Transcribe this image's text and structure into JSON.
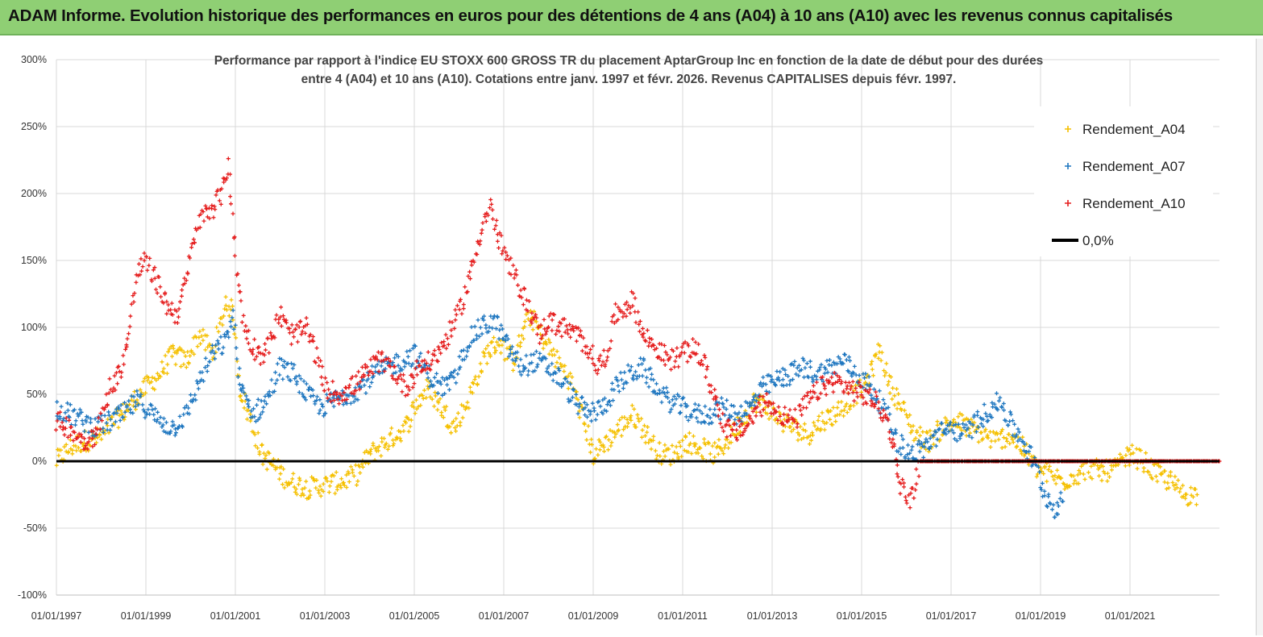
{
  "banner": {
    "title": "ADAM Informe. Evolution historique des performances en euros pour des détentions de 4 ans (A04) à 10 ans (A10) avec les revenus connus capitalisés"
  },
  "chart_data": {
    "type": "scatter",
    "title_lines": [
      "Performance par rapport à l'indice EU STOXX 600 GROSS TR  du placement AptarGroup Inc en fonction de la date de début pour des durées",
      "entre 4 (A04) et 10 ans (A10). Cotations entre janv. 1997 et févr. 2026. Revenus CAPITALISES depuis févr. 1997."
    ],
    "x_ticks": [
      "01/01/1997",
      "01/01/1999",
      "01/01/2001",
      "01/01/2003",
      "01/01/2005",
      "01/01/2007",
      "01/01/2009",
      "01/01/2011",
      "01/01/2013",
      "01/01/2015",
      "01/01/2017",
      "01/01/2019",
      "01/01/2021"
    ],
    "xlim": [
      1997.0,
      2023.0
    ],
    "y_ticks": [
      "300%",
      "250%",
      "200%",
      "150%",
      "100%",
      "50%",
      "0%",
      "-50%",
      "-100%"
    ],
    "ylim": [
      -100,
      300
    ],
    "legend_position": "top-right",
    "series": [
      {
        "name": "Rendement_A04",
        "color": "#f5c000",
        "marker": "+",
        "points": [
          [
            1997.0,
            0
          ],
          [
            1997.3,
            10
          ],
          [
            1997.6,
            15
          ],
          [
            1998.0,
            18
          ],
          [
            1998.3,
            30
          ],
          [
            1998.6,
            40
          ],
          [
            1999.0,
            55
          ],
          [
            1999.3,
            65
          ],
          [
            1999.6,
            80
          ],
          [
            1999.9,
            75
          ],
          [
            2000.2,
            95
          ],
          [
            2000.5,
            80
          ],
          [
            2000.8,
            120
          ],
          [
            2000.95,
            110
          ],
          [
            2001.1,
            55
          ],
          [
            2001.3,
            35
          ],
          [
            2001.6,
            5
          ],
          [
            2001.9,
            -5
          ],
          [
            2002.2,
            -15
          ],
          [
            2002.6,
            -20
          ],
          [
            2003.0,
            -18
          ],
          [
            2003.4,
            -15
          ],
          [
            2003.7,
            -10
          ],
          [
            2004.0,
            5
          ],
          [
            2004.4,
            15
          ],
          [
            2004.8,
            25
          ],
          [
            2005.0,
            40
          ],
          [
            2005.3,
            55
          ],
          [
            2005.6,
            40
          ],
          [
            2005.9,
            25
          ],
          [
            2006.2,
            45
          ],
          [
            2006.6,
            80
          ],
          [
            2006.9,
            90
          ],
          [
            2007.2,
            75
          ],
          [
            2007.6,
            110
          ],
          [
            2007.9,
            90
          ],
          [
            2008.2,
            75
          ],
          [
            2008.5,
            60
          ],
          [
            2008.8,
            30
          ],
          [
            2009.0,
            5
          ],
          [
            2009.3,
            15
          ],
          [
            2009.6,
            25
          ],
          [
            2009.9,
            35
          ],
          [
            2010.2,
            20
          ],
          [
            2010.5,
            5
          ],
          [
            2010.8,
            5
          ],
          [
            2011.1,
            15
          ],
          [
            2011.4,
            10
          ],
          [
            2011.7,
            5
          ],
          [
            2012.0,
            15
          ],
          [
            2012.3,
            30
          ],
          [
            2012.6,
            45
          ],
          [
            2012.9,
            40
          ],
          [
            2013.2,
            30
          ],
          [
            2013.5,
            25
          ],
          [
            2013.8,
            20
          ],
          [
            2014.1,
            30
          ],
          [
            2014.4,
            35
          ],
          [
            2014.7,
            45
          ],
          [
            2015.0,
            55
          ],
          [
            2015.2,
            65
          ],
          [
            2015.4,
            85
          ],
          [
            2015.6,
            60
          ],
          [
            2015.9,
            40
          ],
          [
            2016.2,
            20
          ],
          [
            2016.5,
            15
          ],
          [
            2016.8,
            25
          ],
          [
            2017.1,
            30
          ],
          [
            2017.4,
            25
          ],
          [
            2017.7,
            20
          ],
          [
            2018.0,
            15
          ],
          [
            2018.3,
            20
          ],
          [
            2018.6,
            10
          ],
          [
            2018.9,
            -5
          ],
          [
            2019.2,
            -10
          ],
          [
            2019.5,
            -15
          ],
          [
            2019.8,
            -10
          ],
          [
            2020.1,
            -5
          ],
          [
            2020.4,
            -8
          ],
          [
            2020.7,
            -5
          ],
          [
            2021.0,
            5
          ],
          [
            2021.3,
            0
          ],
          [
            2021.6,
            -10
          ],
          [
            2021.9,
            -15
          ],
          [
            2022.2,
            -25
          ],
          [
            2022.5,
            -25
          ]
        ]
      },
      {
        "name": "Rendement_A07",
        "color": "#1f77c0",
        "marker": "+",
        "points": [
          [
            1997.0,
            40
          ],
          [
            1997.3,
            35
          ],
          [
            1997.6,
            30
          ],
          [
            1997.9,
            25
          ],
          [
            1998.2,
            30
          ],
          [
            1998.5,
            35
          ],
          [
            1998.8,
            45
          ],
          [
            1999.0,
            40
          ],
          [
            1999.3,
            30
          ],
          [
            1999.6,
            25
          ],
          [
            1999.9,
            35
          ],
          [
            2000.2,
            60
          ],
          [
            2000.5,
            80
          ],
          [
            2000.8,
            90
          ],
          [
            2000.95,
            110
          ],
          [
            2001.1,
            55
          ],
          [
            2001.4,
            35
          ],
          [
            2001.7,
            45
          ],
          [
            2002.0,
            70
          ],
          [
            2002.3,
            65
          ],
          [
            2002.6,
            50
          ],
          [
            2002.9,
            40
          ],
          [
            2003.2,
            45
          ],
          [
            2003.5,
            50
          ],
          [
            2003.8,
            55
          ],
          [
            2004.1,
            65
          ],
          [
            2004.4,
            70
          ],
          [
            2004.7,
            75
          ],
          [
            2005.0,
            80
          ],
          [
            2005.3,
            65
          ],
          [
            2005.6,
            55
          ],
          [
            2005.9,
            60
          ],
          [
            2006.2,
            90
          ],
          [
            2006.5,
            100
          ],
          [
            2006.8,
            105
          ],
          [
            2007.1,
            85
          ],
          [
            2007.4,
            70
          ],
          [
            2007.7,
            75
          ],
          [
            2008.0,
            70
          ],
          [
            2008.3,
            60
          ],
          [
            2008.6,
            45
          ],
          [
            2008.9,
            35
          ],
          [
            2009.2,
            40
          ],
          [
            2009.5,
            55
          ],
          [
            2009.8,
            65
          ],
          [
            2010.1,
            70
          ],
          [
            2010.4,
            55
          ],
          [
            2010.7,
            45
          ],
          [
            2011.0,
            40
          ],
          [
            2011.3,
            35
          ],
          [
            2011.6,
            35
          ],
          [
            2011.9,
            40
          ],
          [
            2012.2,
            35
          ],
          [
            2012.5,
            40
          ],
          [
            2012.8,
            55
          ],
          [
            2013.1,
            60
          ],
          [
            2013.4,
            65
          ],
          [
            2013.7,
            70
          ],
          [
            2014.0,
            65
          ],
          [
            2014.3,
            70
          ],
          [
            2014.6,
            75
          ],
          [
            2014.9,
            65
          ],
          [
            2015.2,
            55
          ],
          [
            2015.5,
            40
          ],
          [
            2015.8,
            15
          ],
          [
            2016.1,
            5
          ],
          [
            2016.4,
            10
          ],
          [
            2016.7,
            20
          ],
          [
            2017.0,
            25
          ],
          [
            2017.3,
            20
          ],
          [
            2017.6,
            30
          ],
          [
            2017.9,
            40
          ],
          [
            2018.1,
            45
          ],
          [
            2018.3,
            30
          ],
          [
            2018.6,
            15
          ],
          [
            2018.9,
            -5
          ],
          [
            2019.1,
            -25
          ],
          [
            2019.3,
            -35
          ],
          [
            2019.5,
            -30
          ]
        ]
      },
      {
        "name": "Rendement_A10",
        "color": "#e51d1d",
        "marker": "+",
        "points": [
          [
            1997.0,
            30
          ],
          [
            1997.3,
            25
          ],
          [
            1997.6,
            15
          ],
          [
            1997.9,
            20
          ],
          [
            1998.2,
            55
          ],
          [
            1998.4,
            65
          ],
          [
            1998.6,
            90
          ],
          [
            1998.8,
            140
          ],
          [
            1999.0,
            150
          ],
          [
            1999.3,
            130
          ],
          [
            1999.5,
            115
          ],
          [
            1999.7,
            110
          ],
          [
            1999.9,
            135
          ],
          [
            2000.1,
            170
          ],
          [
            2000.3,
            185
          ],
          [
            2000.5,
            190
          ],
          [
            2000.7,
            200
          ],
          [
            2000.85,
            225
          ],
          [
            2001.0,
            150
          ],
          [
            2001.2,
            100
          ],
          [
            2001.4,
            85
          ],
          [
            2001.6,
            80
          ],
          [
            2001.8,
            90
          ],
          [
            2002.0,
            110
          ],
          [
            2002.2,
            95
          ],
          [
            2002.4,
            95
          ],
          [
            2002.6,
            100
          ],
          [
            2002.8,
            80
          ],
          [
            2003.0,
            55
          ],
          [
            2003.3,
            50
          ],
          [
            2003.6,
            55
          ],
          [
            2003.9,
            65
          ],
          [
            2004.2,
            75
          ],
          [
            2004.5,
            70
          ],
          [
            2004.8,
            55
          ],
          [
            2005.1,
            70
          ],
          [
            2005.4,
            75
          ],
          [
            2005.7,
            90
          ],
          [
            2006.0,
            110
          ],
          [
            2006.3,
            145
          ],
          [
            2006.5,
            175
          ],
          [
            2006.7,
            190
          ],
          [
            2006.9,
            165
          ],
          [
            2007.2,
            140
          ],
          [
            2007.5,
            120
          ],
          [
            2007.8,
            95
          ],
          [
            2008.0,
            105
          ],
          [
            2008.3,
            100
          ],
          [
            2008.6,
            95
          ],
          [
            2008.9,
            85
          ],
          [
            2009.1,
            70
          ],
          [
            2009.3,
            80
          ],
          [
            2009.5,
            110
          ],
          [
            2009.7,
            115
          ],
          [
            2009.9,
            120
          ],
          [
            2010.1,
            95
          ],
          [
            2010.4,
            85
          ],
          [
            2010.7,
            75
          ],
          [
            2011.0,
            80
          ],
          [
            2011.3,
            85
          ],
          [
            2011.5,
            70
          ],
          [
            2011.7,
            50
          ],
          [
            2011.9,
            30
          ],
          [
            2012.1,
            20
          ],
          [
            2012.4,
            25
          ],
          [
            2012.7,
            40
          ],
          [
            2012.9,
            45
          ],
          [
            2013.2,
            35
          ],
          [
            2013.5,
            30
          ],
          [
            2013.8,
            45
          ],
          [
            2014.1,
            55
          ],
          [
            2014.4,
            60
          ],
          [
            2014.7,
            55
          ],
          [
            2015.0,
            50
          ],
          [
            2015.3,
            45
          ],
          [
            2015.5,
            35
          ],
          [
            2015.7,
            15
          ],
          [
            2015.85,
            -15
          ],
          [
            2016.0,
            -25
          ],
          [
            2016.1,
            -30
          ],
          [
            2016.3,
            0
          ],
          [
            2017.0,
            0
          ],
          [
            2018.0,
            0
          ],
          [
            2019.0,
            0
          ],
          [
            2020.0,
            0
          ],
          [
            2021.0,
            0
          ],
          [
            2022.0,
            0
          ],
          [
            2023.0,
            0
          ]
        ]
      },
      {
        "name": "0,0%",
        "color": "#000000",
        "marker": "line",
        "points": [
          [
            1997.0,
            0
          ],
          [
            2023.0,
            0
          ]
        ]
      }
    ]
  }
}
